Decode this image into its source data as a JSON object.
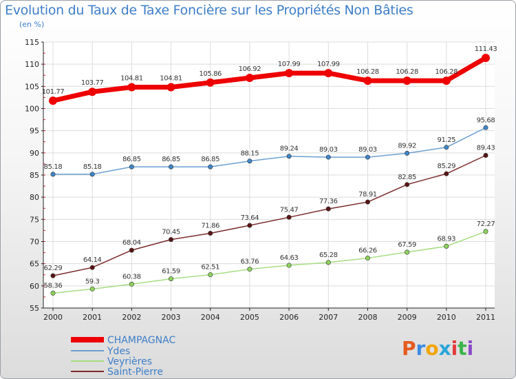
{
  "title": "Evolution du Taux de Taxe Foncière sur les Propriétés Non Bâties",
  "unit": "(en %)",
  "brand": {
    "text": "Proxiti",
    "letter_colors": [
      "#e65a1e",
      "#3b8be0",
      "#f0a500",
      "#2aa5d8",
      "#e23b3b",
      "#3bb54a",
      "#8a4cc8"
    ]
  },
  "chart_data": {
    "type": "line",
    "title": "Evolution du Taux de Taxe Foncière sur les Propriétés Non Bâties",
    "ylabel": "(en %)",
    "xlabel": "",
    "ylim": [
      55,
      115
    ],
    "yticks": [
      55,
      60,
      65,
      70,
      75,
      80,
      85,
      90,
      95,
      100,
      105,
      110,
      115
    ],
    "categories": [
      "2000",
      "2001",
      "2002",
      "2003",
      "2004",
      "2005",
      "2006",
      "2007",
      "2008",
      "2009",
      "2010",
      "2011"
    ],
    "grid": true,
    "legend_position": "bottom-left",
    "series": [
      {
        "name": "CHAMPAGNAC",
        "color": "#ee0000",
        "marker": "#ee0000",
        "values": [
          101.77,
          103.77,
          104.81,
          104.81,
          105.86,
          106.92,
          107.99,
          107.99,
          106.28,
          106.28,
          106.28,
          111.43
        ]
      },
      {
        "name": "Ydes",
        "color": "#6c9fd0",
        "marker": "#3f87c9",
        "values": [
          85.18,
          85.18,
          86.85,
          86.85,
          86.85,
          88.15,
          89.24,
          89.03,
          89.03,
          89.92,
          91.25,
          95.68
        ]
      },
      {
        "name": "Veyrières",
        "color": "#a6dd80",
        "marker": "#8fd45c",
        "values": [
          58.36,
          59.3,
          60.38,
          61.59,
          62.51,
          63.76,
          64.63,
          65.28,
          66.26,
          67.59,
          68.93,
          72.27
        ]
      },
      {
        "name": "Saint-Pierre",
        "color": "#7a2a2a",
        "marker": "#5a1414",
        "values": [
          62.29,
          64.14,
          68.04,
          70.45,
          71.86,
          73.64,
          75.47,
          77.36,
          78.91,
          82.85,
          85.29,
          89.43
        ]
      }
    ]
  }
}
